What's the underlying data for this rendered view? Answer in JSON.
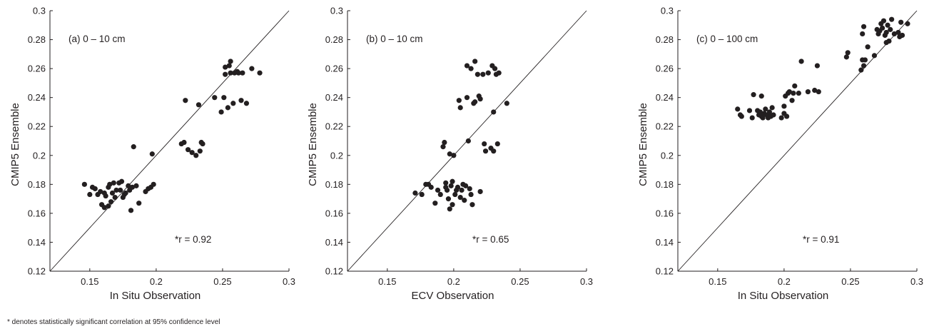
{
  "footnote": "* denotes statistically significant correlation at 95% confidence level",
  "chart_data": [
    {
      "type": "scatter",
      "panel_label": "(a) 0 – 10 cm",
      "xlabel": "In Situ Observation",
      "ylabel": "CMIP5 Ensemble",
      "xlim": [
        0.12,
        0.3
      ],
      "ylim": [
        0.12,
        0.3
      ],
      "xticks": [
        0.15,
        0.2,
        0.25,
        0.3
      ],
      "xtick_labels": [
        "0.15",
        "0.2",
        "0.25",
        "0.3"
      ],
      "yticks": [
        0.12,
        0.14,
        0.16,
        0.18,
        0.2,
        0.22,
        0.24,
        0.26,
        0.28,
        0.3
      ],
      "ytick_labels": [
        "0.12",
        "0.14",
        "0.16",
        "0.18",
        "0.2",
        "0.22",
        "0.24",
        "0.26",
        "0.28",
        "0.3"
      ],
      "reference_line": "1:1",
      "annotation": "*r = 0.92",
      "points": [
        [
          0.146,
          0.18
        ],
        [
          0.15,
          0.173
        ],
        [
          0.152,
          0.178
        ],
        [
          0.154,
          0.177
        ],
        [
          0.156,
          0.173
        ],
        [
          0.158,
          0.175
        ],
        [
          0.159,
          0.166
        ],
        [
          0.161,
          0.174
        ],
        [
          0.161,
          0.164
        ],
        [
          0.162,
          0.172
        ],
        [
          0.164,
          0.178
        ],
        [
          0.164,
          0.165
        ],
        [
          0.165,
          0.18
        ],
        [
          0.166,
          0.168
        ],
        [
          0.167,
          0.174
        ],
        [
          0.168,
          0.181
        ],
        [
          0.169,
          0.171
        ],
        [
          0.17,
          0.176
        ],
        [
          0.172,
          0.181
        ],
        [
          0.173,
          0.176
        ],
        [
          0.174,
          0.182
        ],
        [
          0.175,
          0.171
        ],
        [
          0.176,
          0.173
        ],
        [
          0.177,
          0.174
        ],
        [
          0.179,
          0.179
        ],
        [
          0.18,
          0.176
        ],
        [
          0.181,
          0.162
        ],
        [
          0.182,
          0.178
        ],
        [
          0.183,
          0.206
        ],
        [
          0.185,
          0.179
        ],
        [
          0.187,
          0.167
        ],
        [
          0.192,
          0.175
        ],
        [
          0.194,
          0.177
        ],
        [
          0.196,
          0.178
        ],
        [
          0.197,
          0.201
        ],
        [
          0.198,
          0.18
        ],
        [
          0.219,
          0.208
        ],
        [
          0.221,
          0.209
        ],
        [
          0.222,
          0.238
        ],
        [
          0.224,
          0.204
        ],
        [
          0.227,
          0.202
        ],
        [
          0.23,
          0.2
        ],
        [
          0.232,
          0.235
        ],
        [
          0.233,
          0.203
        ],
        [
          0.234,
          0.209
        ],
        [
          0.235,
          0.208
        ],
        [
          0.244,
          0.24
        ],
        [
          0.249,
          0.23
        ],
        [
          0.251,
          0.24
        ],
        [
          0.252,
          0.256
        ],
        [
          0.252,
          0.261
        ],
        [
          0.254,
          0.233
        ],
        [
          0.255,
          0.262
        ],
        [
          0.256,
          0.257
        ],
        [
          0.256,
          0.265
        ],
        [
          0.258,
          0.236
        ],
        [
          0.259,
          0.257
        ],
        [
          0.261,
          0.258
        ],
        [
          0.262,
          0.257
        ],
        [
          0.264,
          0.238
        ],
        [
          0.265,
          0.257
        ],
        [
          0.268,
          0.236
        ],
        [
          0.272,
          0.26
        ],
        [
          0.278,
          0.257
        ]
      ]
    },
    {
      "type": "scatter",
      "panel_label": "(b) 0 – 10 cm",
      "xlabel": "ECV Observation",
      "ylabel": "CMIP5 Ensemble",
      "xlim": [
        0.12,
        0.3
      ],
      "ylim": [
        0.12,
        0.3
      ],
      "xticks": [
        0.15,
        0.2,
        0.25,
        0.3
      ],
      "xtick_labels": [
        "0.15",
        "0.2",
        "0.25",
        "0.3"
      ],
      "yticks": [
        0.12,
        0.14,
        0.16,
        0.18,
        0.2,
        0.22,
        0.24,
        0.26,
        0.28,
        0.3
      ],
      "ytick_labels": [
        "0.12",
        "0.14",
        "0.16",
        "0.18",
        "0.2",
        "0.22",
        "0.24",
        "0.26",
        "0.28",
        "0.3"
      ],
      "reference_line": "1:1",
      "annotation": "*r = 0.65",
      "points": [
        [
          0.171,
          0.174
        ],
        [
          0.176,
          0.173
        ],
        [
          0.179,
          0.18
        ],
        [
          0.181,
          0.18
        ],
        [
          0.183,
          0.178
        ],
        [
          0.186,
          0.167
        ],
        [
          0.188,
          0.176
        ],
        [
          0.19,
          0.173
        ],
        [
          0.192,
          0.206
        ],
        [
          0.193,
          0.209
        ],
        [
          0.194,
          0.178
        ],
        [
          0.194,
          0.181
        ],
        [
          0.195,
          0.176
        ],
        [
          0.196,
          0.17
        ],
        [
          0.197,
          0.163
        ],
        [
          0.197,
          0.201
        ],
        [
          0.198,
          0.179
        ],
        [
          0.199,
          0.182
        ],
        [
          0.199,
          0.166
        ],
        [
          0.2,
          0.2
        ],
        [
          0.201,
          0.173
        ],
        [
          0.202,
          0.176
        ],
        [
          0.203,
          0.178
        ],
        [
          0.204,
          0.238
        ],
        [
          0.205,
          0.233
        ],
        [
          0.205,
          0.171
        ],
        [
          0.206,
          0.176
        ],
        [
          0.207,
          0.18
        ],
        [
          0.208,
          0.169
        ],
        [
          0.209,
          0.179
        ],
        [
          0.21,
          0.24
        ],
        [
          0.21,
          0.262
        ],
        [
          0.211,
          0.21
        ],
        [
          0.212,
          0.177
        ],
        [
          0.213,
          0.173
        ],
        [
          0.213,
          0.26
        ],
        [
          0.214,
          0.166
        ],
        [
          0.215,
          0.236
        ],
        [
          0.216,
          0.237
        ],
        [
          0.216,
          0.265
        ],
        [
          0.218,
          0.256
        ],
        [
          0.219,
          0.241
        ],
        [
          0.22,
          0.175
        ],
        [
          0.22,
          0.239
        ],
        [
          0.222,
          0.256
        ],
        [
          0.223,
          0.208
        ],
        [
          0.224,
          0.203
        ],
        [
          0.226,
          0.257
        ],
        [
          0.228,
          0.205
        ],
        [
          0.229,
          0.262
        ],
        [
          0.23,
          0.203
        ],
        [
          0.23,
          0.23
        ],
        [
          0.231,
          0.26
        ],
        [
          0.232,
          0.256
        ],
        [
          0.233,
          0.208
        ],
        [
          0.234,
          0.257
        ],
        [
          0.24,
          0.236
        ]
      ]
    },
    {
      "type": "scatter",
      "panel_label": "(c) 0 – 100 cm",
      "xlabel": "In Situ Observation",
      "ylabel": "CMIP5 Ensemble",
      "xlim": [
        0.12,
        0.3
      ],
      "ylim": [
        0.12,
        0.3
      ],
      "xticks": [
        0.15,
        0.2,
        0.25,
        0.3
      ],
      "xtick_labels": [
        "0.15",
        "0.2",
        "0.25",
        "0.3"
      ],
      "yticks": [
        0.12,
        0.14,
        0.16,
        0.18,
        0.2,
        0.22,
        0.24,
        0.26,
        0.28,
        0.3
      ],
      "ytick_labels": [
        "0.12",
        "0.14",
        "0.16",
        "0.18",
        "0.2",
        "0.22",
        "0.24",
        "0.26",
        "0.28",
        "0.3"
      ],
      "reference_line": "1:1",
      "annotation": "*r = 0.91",
      "points": [
        [
          0.165,
          0.232
        ],
        [
          0.167,
          0.228
        ],
        [
          0.168,
          0.227
        ],
        [
          0.174,
          0.231
        ],
        [
          0.176,
          0.226
        ],
        [
          0.177,
          0.242
        ],
        [
          0.18,
          0.231
        ],
        [
          0.181,
          0.228
        ],
        [
          0.182,
          0.23
        ],
        [
          0.183,
          0.241
        ],
        [
          0.183,
          0.227
        ],
        [
          0.184,
          0.226
        ],
        [
          0.185,
          0.229
        ],
        [
          0.186,
          0.232
        ],
        [
          0.187,
          0.228
        ],
        [
          0.188,
          0.226
        ],
        [
          0.189,
          0.23
        ],
        [
          0.19,
          0.227
        ],
        [
          0.191,
          0.233
        ],
        [
          0.192,
          0.228
        ],
        [
          0.198,
          0.226
        ],
        [
          0.2,
          0.234
        ],
        [
          0.2,
          0.229
        ],
        [
          0.201,
          0.241
        ],
        [
          0.202,
          0.227
        ],
        [
          0.203,
          0.243
        ],
        [
          0.204,
          0.244
        ],
        [
          0.206,
          0.238
        ],
        [
          0.207,
          0.243
        ],
        [
          0.208,
          0.248
        ],
        [
          0.211,
          0.243
        ],
        [
          0.213,
          0.265
        ],
        [
          0.218,
          0.244
        ],
        [
          0.223,
          0.245
        ],
        [
          0.225,
          0.262
        ],
        [
          0.226,
          0.244
        ],
        [
          0.247,
          0.268
        ],
        [
          0.248,
          0.271
        ],
        [
          0.258,
          0.259
        ],
        [
          0.259,
          0.266
        ],
        [
          0.259,
          0.284
        ],
        [
          0.26,
          0.262
        ],
        [
          0.26,
          0.289
        ],
        [
          0.261,
          0.266
        ],
        [
          0.263,
          0.275
        ],
        [
          0.268,
          0.269
        ],
        [
          0.27,
          0.287
        ],
        [
          0.271,
          0.284
        ],
        [
          0.272,
          0.286
        ],
        [
          0.273,
          0.291
        ],
        [
          0.274,
          0.288
        ],
        [
          0.275,
          0.293
        ],
        [
          0.276,
          0.283
        ],
        [
          0.277,
          0.278
        ],
        [
          0.277,
          0.285
        ],
        [
          0.278,
          0.29
        ],
        [
          0.279,
          0.279
        ],
        [
          0.28,
          0.287
        ],
        [
          0.281,
          0.294
        ],
        [
          0.283,
          0.284
        ],
        [
          0.286,
          0.285
        ],
        [
          0.287,
          0.282
        ],
        [
          0.288,
          0.292
        ],
        [
          0.289,
          0.283
        ],
        [
          0.293,
          0.291
        ]
      ]
    }
  ]
}
